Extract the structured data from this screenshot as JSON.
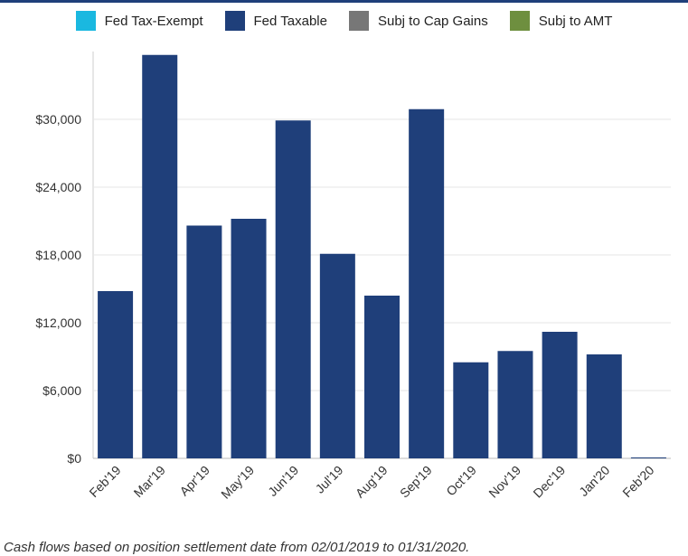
{
  "chart_data": {
    "type": "bar",
    "categories": [
      "Feb'19",
      "Mar'19",
      "Apr'19",
      "May'19",
      "Jun'19",
      "Jul'19",
      "Aug'19",
      "Sep'19",
      "Oct'19",
      "Nov'19",
      "Dec'19",
      "Jan'20",
      "Feb'20"
    ],
    "series": [
      {
        "name": "Fed Tax-Exempt",
        "color": "#1ab8e0",
        "values": [
          0,
          0,
          0,
          0,
          0,
          0,
          0,
          0,
          0,
          0,
          0,
          0,
          0
        ]
      },
      {
        "name": "Fed Taxable",
        "color": "#1f3f7a",
        "values": [
          14800,
          35700,
          20600,
          21200,
          29900,
          18100,
          14400,
          30900,
          8500,
          9500,
          11200,
          9200,
          80
        ]
      },
      {
        "name": "Subj to Cap Gains",
        "color": "#777777",
        "values": [
          0,
          0,
          0,
          0,
          0,
          0,
          0,
          0,
          0,
          0,
          0,
          0,
          0
        ]
      },
      {
        "name": "Subj to AMT",
        "color": "#6e8f3f",
        "values": [
          0,
          0,
          0,
          0,
          0,
          0,
          0,
          0,
          0,
          0,
          0,
          0,
          0
        ]
      }
    ],
    "yticks": [
      "$0",
      "$6,000",
      "$12,000",
      "$18,000",
      "$24,000",
      "$30,000"
    ],
    "ytick_values": [
      0,
      6000,
      12000,
      18000,
      24000,
      30000
    ],
    "ylim": [
      0,
      36000
    ],
    "grid": true,
    "legend": "top-center"
  },
  "footnote": "Cash flows based on position settlement date from 02/01/2019 to 01/31/2020."
}
